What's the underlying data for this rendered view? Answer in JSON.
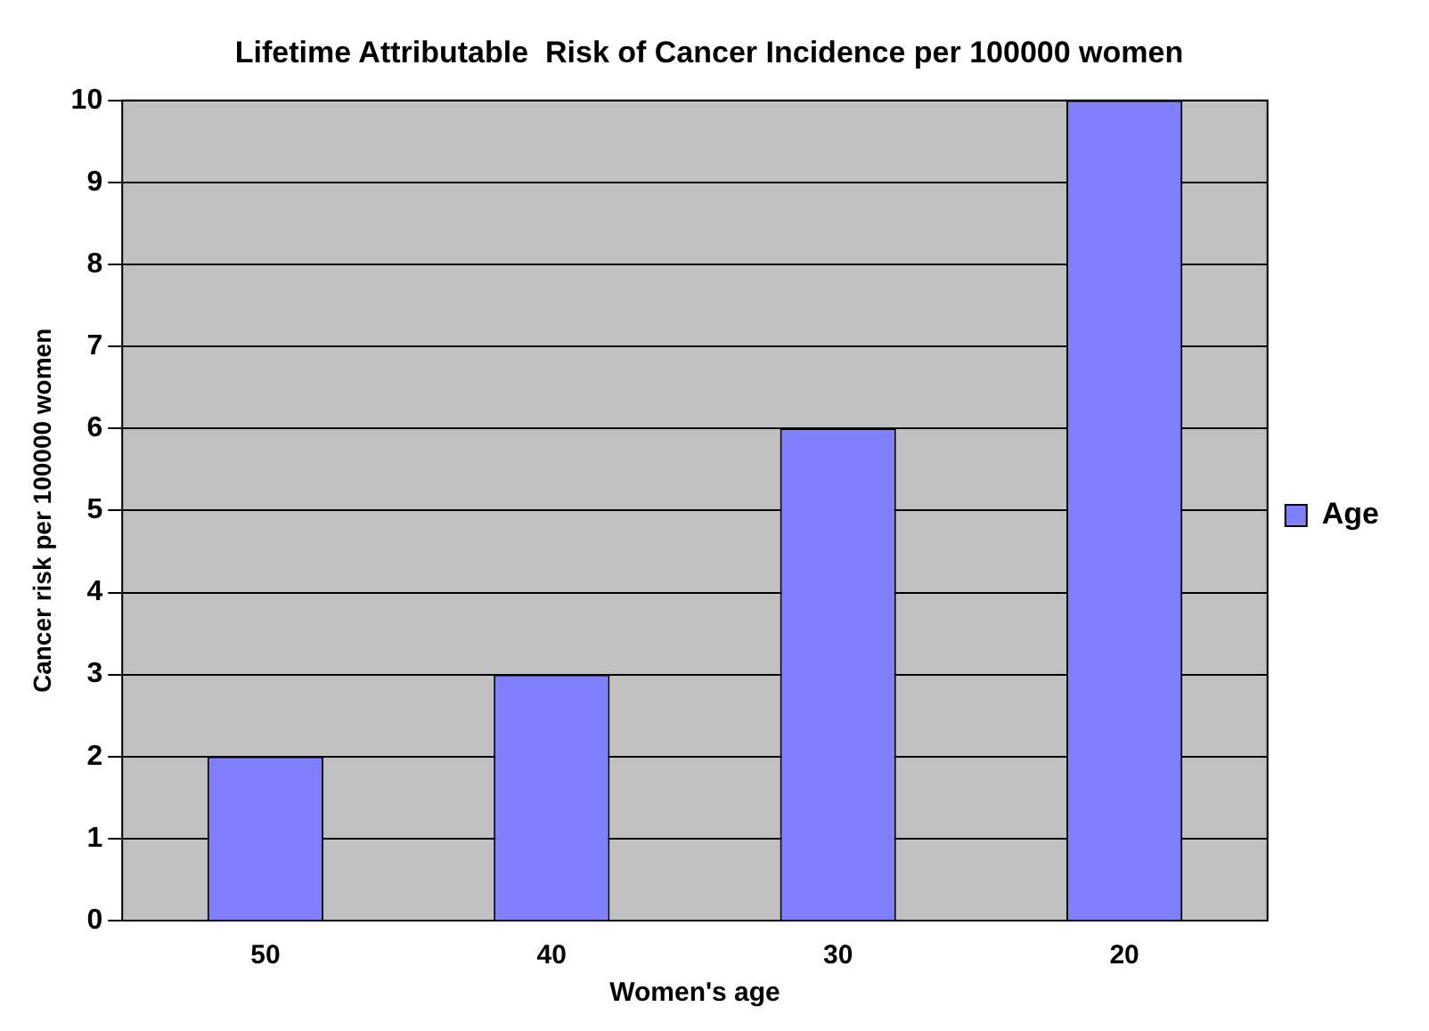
{
  "chart_data": {
    "type": "bar",
    "title": "Lifetime Attributable  Risk of Cancer Incidence per 100000 women",
    "xlabel": "Women's age",
    "ylabel": "Cancer risk per 100000 women",
    "categories": [
      "50",
      "40",
      "30",
      "20"
    ],
    "series": [
      {
        "name": "Age",
        "color": "#8080ff",
        "values": [
          2,
          3,
          6,
          10
        ]
      }
    ],
    "ylim": [
      0,
      10
    ],
    "yticks": [
      0,
      1,
      2,
      3,
      4,
      5,
      6,
      7,
      8,
      9,
      10
    ],
    "grid": "y",
    "legend": "right"
  }
}
